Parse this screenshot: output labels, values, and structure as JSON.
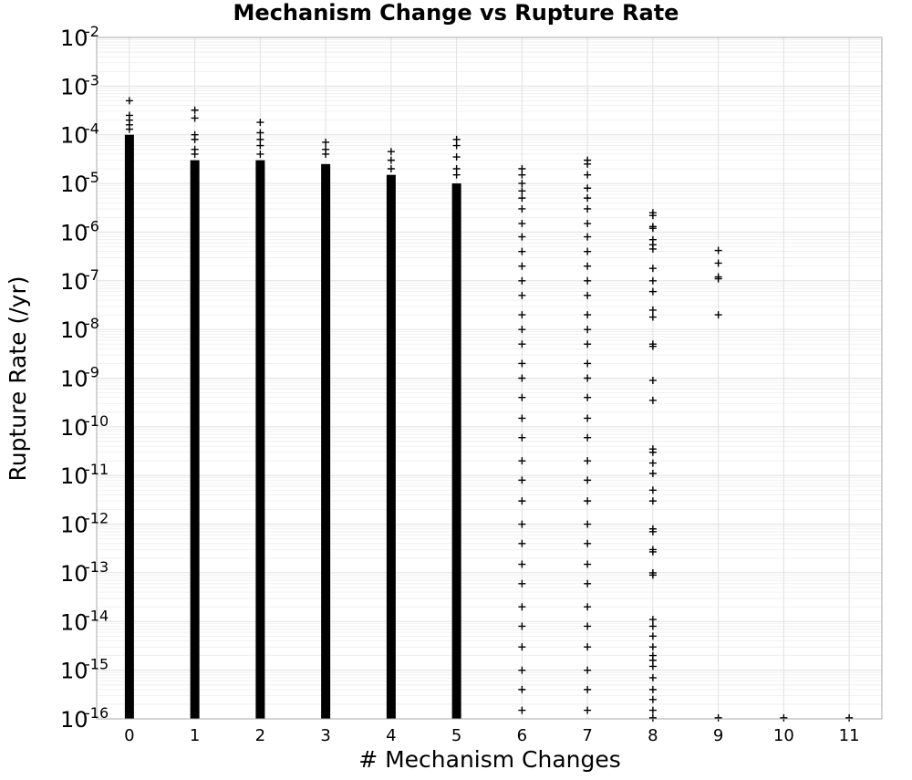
{
  "chart_data": {
    "type": "scatter",
    "title": "Mechanism Change vs Rupture Rate",
    "xlabel": "# Mechanism Changes",
    "ylabel": "Rupture Rate (/yr)",
    "x_ticks": [
      "0",
      "1",
      "2",
      "3",
      "4",
      "5",
      "6",
      "7",
      "8",
      "9",
      "10",
      "11"
    ],
    "y_ticks": [
      {
        "base": "10",
        "exp": "-2"
      },
      {
        "base": "10",
        "exp": "-3"
      },
      {
        "base": "10",
        "exp": "-4"
      },
      {
        "base": "10",
        "exp": "-5"
      },
      {
        "base": "10",
        "exp": "-6"
      },
      {
        "base": "10",
        "exp": "-7"
      },
      {
        "base": "10",
        "exp": "-8"
      },
      {
        "base": "10",
        "exp": "-9"
      },
      {
        "base": "10",
        "exp": "-10"
      },
      {
        "base": "10",
        "exp": "-11"
      },
      {
        "base": "10",
        "exp": "-12"
      },
      {
        "base": "10",
        "exp": "-13"
      },
      {
        "base": "10",
        "exp": "-14"
      },
      {
        "base": "10",
        "exp": "-15"
      },
      {
        "base": "10",
        "exp": "-16"
      }
    ],
    "x_range": [
      -0.5,
      11.5
    ],
    "y_scale": "log",
    "y_range": [
      1e-16,
      0.01
    ],
    "grid": true,
    "marker": "plus",
    "marker_color": "#000000",
    "dense_ranges": [
      {
        "x": 0,
        "y_min": 1e-16,
        "y_max": 0.0001
      },
      {
        "x": 1,
        "y_min": 1e-16,
        "y_max": 3e-05
      },
      {
        "x": 2,
        "y_min": 1e-16,
        "y_max": 3e-05
      },
      {
        "x": 3,
        "y_min": 1e-16,
        "y_max": 2.5e-05
      },
      {
        "x": 4,
        "y_min": 1e-16,
        "y_max": 1.5e-05
      },
      {
        "x": 5,
        "y_min": 1e-16,
        "y_max": 1e-05
      }
    ],
    "points": [
      {
        "x": 0,
        "y": 0.0005
      },
      {
        "x": 0,
        "y": 0.00025
      },
      {
        "x": 0,
        "y": 0.0002
      },
      {
        "x": 0,
        "y": 0.00016
      },
      {
        "x": 0,
        "y": 0.00013
      },
      {
        "x": 1,
        "y": 0.00032
      },
      {
        "x": 1,
        "y": 0.00022
      },
      {
        "x": 1,
        "y": 0.0001
      },
      {
        "x": 1,
        "y": 8e-05
      },
      {
        "x": 1,
        "y": 5e-05
      },
      {
        "x": 1,
        "y": 4e-05
      },
      {
        "x": 2,
        "y": 0.00018
      },
      {
        "x": 2,
        "y": 0.00011
      },
      {
        "x": 2,
        "y": 8e-05
      },
      {
        "x": 2,
        "y": 6e-05
      },
      {
        "x": 2,
        "y": 4e-05
      },
      {
        "x": 3,
        "y": 7e-05
      },
      {
        "x": 3,
        "y": 5e-05
      },
      {
        "x": 3,
        "y": 4e-05
      },
      {
        "x": 4,
        "y": 4.5e-05
      },
      {
        "x": 4,
        "y": 3e-05
      },
      {
        "x": 4,
        "y": 2e-05
      },
      {
        "x": 5,
        "y": 8e-05
      },
      {
        "x": 5,
        "y": 6e-05
      },
      {
        "x": 5,
        "y": 3.5e-05
      },
      {
        "x": 5,
        "y": 2e-05
      },
      {
        "x": 5,
        "y": 1.5e-05
      },
      {
        "x": 6,
        "y": 2e-05
      },
      {
        "x": 6,
        "y": 1.5e-05
      },
      {
        "x": 6,
        "y": 1e-05
      },
      {
        "x": 6,
        "y": 7e-06
      },
      {
        "x": 6,
        "y": 5e-06
      },
      {
        "x": 6,
        "y": 3e-06
      },
      {
        "x": 6,
        "y": 1.5e-06
      },
      {
        "x": 6,
        "y": 8e-07
      },
      {
        "x": 6,
        "y": 4e-07
      },
      {
        "x": 6,
        "y": 2e-07
      },
      {
        "x": 6,
        "y": 1e-07
      },
      {
        "x": 6,
        "y": 5e-08
      },
      {
        "x": 6,
        "y": 2e-08
      },
      {
        "x": 6,
        "y": 1e-08
      },
      {
        "x": 6,
        "y": 5e-09
      },
      {
        "x": 6,
        "y": 2e-09
      },
      {
        "x": 6,
        "y": 1e-09
      },
      {
        "x": 6,
        "y": 4e-10
      },
      {
        "x": 6,
        "y": 1.5e-10
      },
      {
        "x": 6,
        "y": 6e-11
      },
      {
        "x": 6,
        "y": 2e-11
      },
      {
        "x": 6,
        "y": 8e-12
      },
      {
        "x": 6,
        "y": 3e-12
      },
      {
        "x": 6,
        "y": 1e-12
      },
      {
        "x": 6,
        "y": 4e-13
      },
      {
        "x": 6,
        "y": 1.5e-13
      },
      {
        "x": 6,
        "y": 6e-14
      },
      {
        "x": 6,
        "y": 2e-14
      },
      {
        "x": 6,
        "y": 8e-15
      },
      {
        "x": 6,
        "y": 3e-15
      },
      {
        "x": 6,
        "y": 1e-15
      },
      {
        "x": 6,
        "y": 4e-16
      },
      {
        "x": 6,
        "y": 1.5e-16
      },
      {
        "x": 7,
        "y": 3e-05
      },
      {
        "x": 7,
        "y": 2.5e-05
      },
      {
        "x": 7,
        "y": 1.5e-05
      },
      {
        "x": 7,
        "y": 8e-06
      },
      {
        "x": 7,
        "y": 5e-06
      },
      {
        "x": 7,
        "y": 3e-06
      },
      {
        "x": 7,
        "y": 1.5e-06
      },
      {
        "x": 7,
        "y": 8e-07
      },
      {
        "x": 7,
        "y": 4e-07
      },
      {
        "x": 7,
        "y": 2e-07
      },
      {
        "x": 7,
        "y": 1e-07
      },
      {
        "x": 7,
        "y": 5e-08
      },
      {
        "x": 7,
        "y": 2e-08
      },
      {
        "x": 7,
        "y": 1e-08
      },
      {
        "x": 7,
        "y": 5e-09
      },
      {
        "x": 7,
        "y": 2e-09
      },
      {
        "x": 7,
        "y": 1e-09
      },
      {
        "x": 7,
        "y": 4e-10
      },
      {
        "x": 7,
        "y": 1.5e-10
      },
      {
        "x": 7,
        "y": 6e-11
      },
      {
        "x": 7,
        "y": 2e-11
      },
      {
        "x": 7,
        "y": 8e-12
      },
      {
        "x": 7,
        "y": 3e-12
      },
      {
        "x": 7,
        "y": 1e-12
      },
      {
        "x": 7,
        "y": 4e-13
      },
      {
        "x": 7,
        "y": 1.5e-13
      },
      {
        "x": 7,
        "y": 6e-14
      },
      {
        "x": 7,
        "y": 2e-14
      },
      {
        "x": 7,
        "y": 8e-15
      },
      {
        "x": 7,
        "y": 3e-15
      },
      {
        "x": 7,
        "y": 1e-15
      },
      {
        "x": 7,
        "y": 4e-16
      },
      {
        "x": 7,
        "y": 1.5e-16
      },
      {
        "x": 8,
        "y": 2.5e-06
      },
      {
        "x": 8,
        "y": 2.2e-06
      },
      {
        "x": 8,
        "y": 1.3e-06
      },
      {
        "x": 8,
        "y": 1.2e-06
      },
      {
        "x": 8,
        "y": 7e-07
      },
      {
        "x": 8,
        "y": 5.5e-07
      },
      {
        "x": 8,
        "y": 4.5e-07
      },
      {
        "x": 8,
        "y": 1.8e-07
      },
      {
        "x": 8,
        "y": 1e-07
      },
      {
        "x": 8,
        "y": 6e-08
      },
      {
        "x": 8,
        "y": 2.5e-08
      },
      {
        "x": 8,
        "y": 1.8e-08
      },
      {
        "x": 8,
        "y": 5e-09
      },
      {
        "x": 8,
        "y": 4.5e-09
      },
      {
        "x": 8,
        "y": 9e-10
      },
      {
        "x": 8,
        "y": 3.5e-10
      },
      {
        "x": 8,
        "y": 3.5e-11
      },
      {
        "x": 8,
        "y": 3e-11
      },
      {
        "x": 8,
        "y": 1.8e-11
      },
      {
        "x": 8,
        "y": 1.1e-11
      },
      {
        "x": 8,
        "y": 5e-12
      },
      {
        "x": 8,
        "y": 3e-12
      },
      {
        "x": 8,
        "y": 8e-13
      },
      {
        "x": 8,
        "y": 7e-13
      },
      {
        "x": 8,
        "y": 3e-13
      },
      {
        "x": 8,
        "y": 2.7e-13
      },
      {
        "x": 8,
        "y": 1e-13
      },
      {
        "x": 8,
        "y": 9e-14
      },
      {
        "x": 8,
        "y": 1.1e-14
      },
      {
        "x": 8,
        "y": 8e-15
      },
      {
        "x": 8,
        "y": 5e-15
      },
      {
        "x": 8,
        "y": 3e-15
      },
      {
        "x": 8,
        "y": 2e-15
      },
      {
        "x": 8,
        "y": 1.6e-15
      },
      {
        "x": 8,
        "y": 1.2e-15
      },
      {
        "x": 8,
        "y": 7e-16
      },
      {
        "x": 8,
        "y": 4e-16
      },
      {
        "x": 8,
        "y": 2.5e-16
      },
      {
        "x": 8,
        "y": 1.5e-16
      },
      {
        "x": 8,
        "y": 1.05e-16
      },
      {
        "x": 9,
        "y": 4.2e-07
      },
      {
        "x": 9,
        "y": 2.3e-07
      },
      {
        "x": 9,
        "y": 1.2e-07
      },
      {
        "x": 9,
        "y": 1.1e-07
      },
      {
        "x": 9,
        "y": 2e-08
      },
      {
        "x": 9,
        "y": 1.05e-16
      },
      {
        "x": 10,
        "y": 1.05e-16
      },
      {
        "x": 11,
        "y": 1.05e-16
      }
    ]
  }
}
